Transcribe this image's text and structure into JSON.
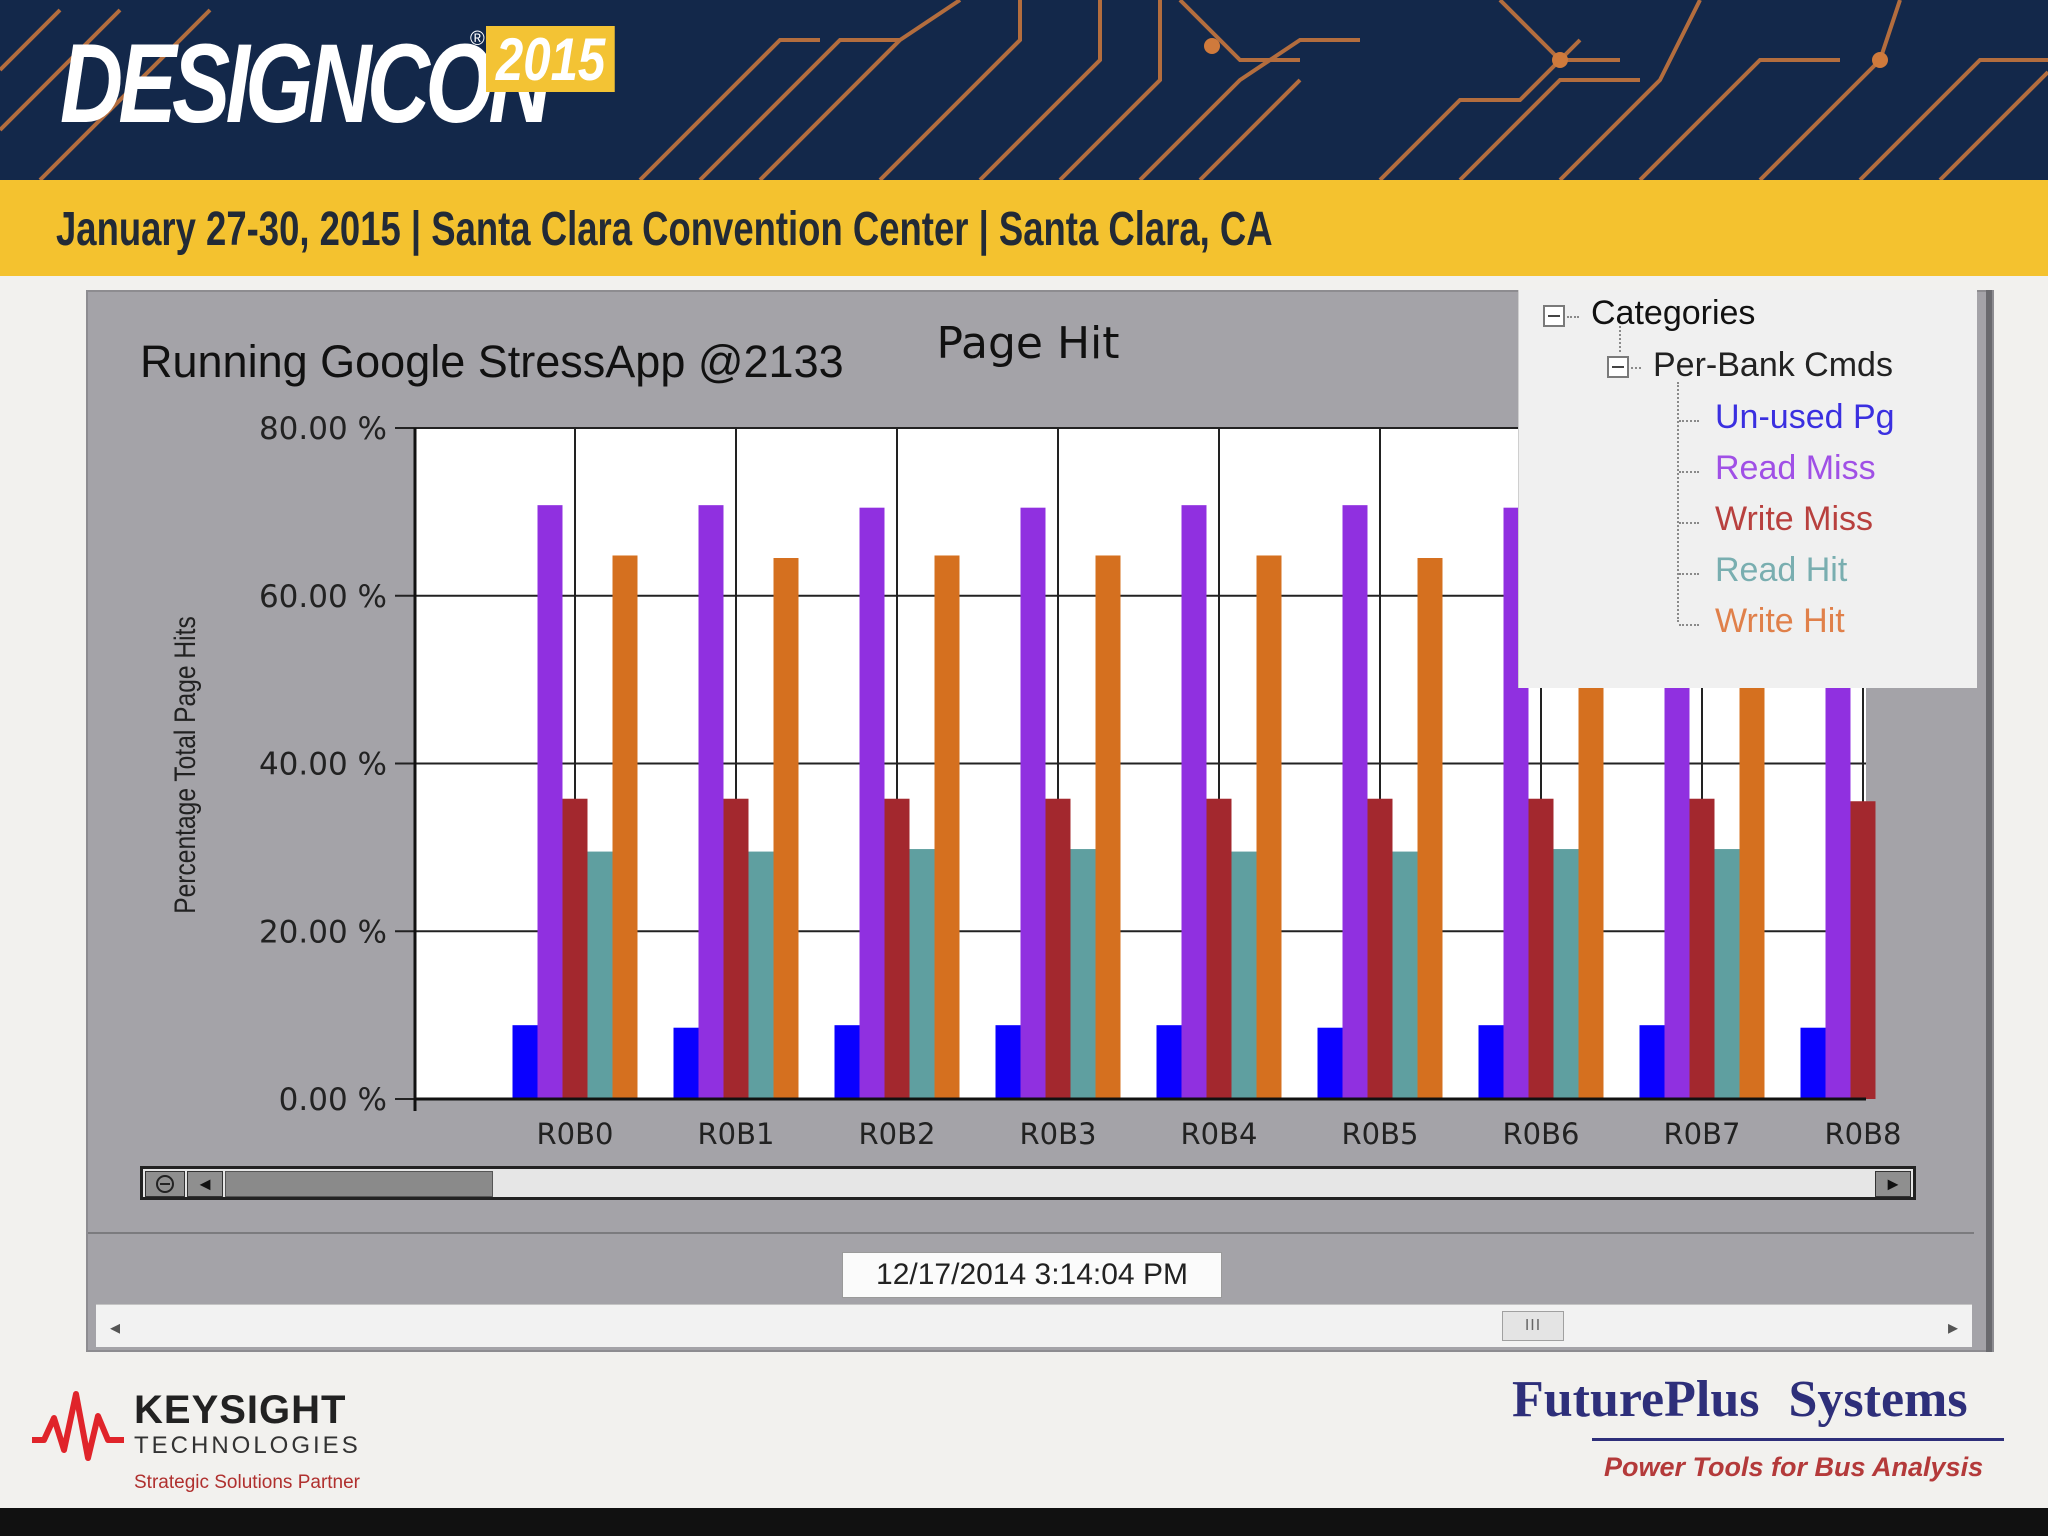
{
  "header": {
    "logo_text": "DESIGNCON",
    "logo_reg": "®",
    "logo_year": "2015",
    "event_line": "January 27-30, 2015 | Santa Clara Convention Center | Santa Clara, CA",
    "colors": {
      "banner": "#13284a",
      "accent": "#f4c22f",
      "circuit": "#d07a3a"
    }
  },
  "overlay_text": "Running Google StressApp @2133",
  "chart_data": {
    "type": "bar",
    "title": "Page Hit",
    "xlabel": "",
    "ylabel": "Percentage Total Page Hits",
    "ylim": [
      0,
      80
    ],
    "yticks": [
      "0.00 %",
      "20.00 %",
      "40.00 %",
      "60.00 %",
      "80.00 %"
    ],
    "grid": true,
    "legend_position": "top-right",
    "categories": [
      "R0B0",
      "R0B1",
      "R0B2",
      "R0B3",
      "R0B4",
      "R0B5",
      "R0B6",
      "R0B7",
      "R0B8"
    ],
    "series": [
      {
        "name": "Un-used Pg",
        "color": "#0a00ff",
        "values": [
          8.8,
          8.5,
          8.8,
          8.8,
          8.8,
          8.5,
          8.8,
          8.8,
          8.5
        ]
      },
      {
        "name": "Read Miss",
        "color": "#9030e0",
        "values": [
          70.8,
          70.8,
          70.5,
          70.5,
          70.8,
          70.8,
          70.5,
          70.5,
          70.5
        ]
      },
      {
        "name": "Write Miss",
        "color": "#a3282e",
        "values": [
          35.8,
          35.8,
          35.8,
          35.8,
          35.8,
          35.8,
          35.8,
          35.8,
          35.5
        ]
      },
      {
        "name": "Read Hit",
        "color": "#5f9fa0",
        "values": [
          29.5,
          29.5,
          29.8,
          29.8,
          29.5,
          29.5,
          29.8,
          29.8,
          null
        ]
      },
      {
        "name": "Write Hit",
        "color": "#d5701f",
        "values": [
          64.8,
          64.5,
          64.8,
          64.8,
          64.8,
          64.5,
          64.8,
          64.8,
          null
        ]
      }
    ]
  },
  "legend_tree": {
    "root": "Categories",
    "group": "Per-Bank Cmds",
    "items": [
      {
        "label": "Un-used Pg",
        "color": "#3a2fe0"
      },
      {
        "label": "Read Miss",
        "color": "#a050e6"
      },
      {
        "label": "Write Miss",
        "color": "#b8403e"
      },
      {
        "label": "Read Hit",
        "color": "#79aeb0"
      },
      {
        "label": "Write Hit",
        "color": "#e0804a"
      }
    ]
  },
  "scrollbar": {
    "left_arrow": "◄",
    "right_arrow": "►"
  },
  "timestamp": "12/17/2014 3:14:04 PM",
  "bottom_scroll": {
    "left_arrow": "◂",
    "right_arrow": "▸",
    "thumb_grip": "III"
  },
  "footer": {
    "keysight_name": "KEYSIGHT",
    "keysight_sub": "TECHNOLOGIES",
    "keysight_partner": "Strategic Solutions Partner",
    "futureplus_name": "FuturePlus Systems",
    "futureplus_tagline": "Power Tools for Bus Analysis"
  }
}
